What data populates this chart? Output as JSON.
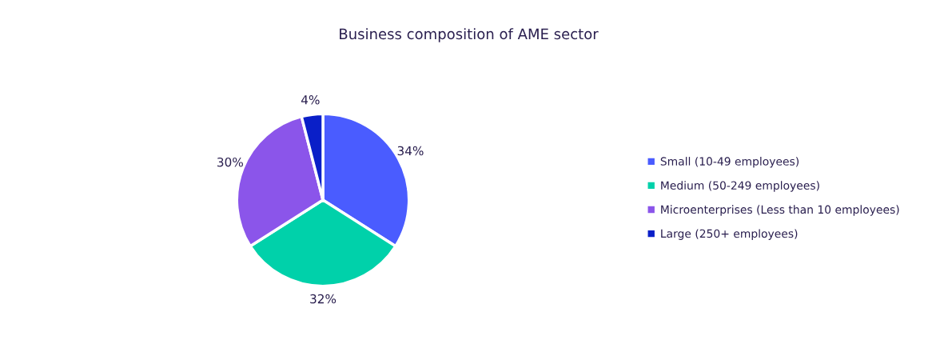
{
  "chart_data": {
    "type": "pie",
    "title": "Business composition of AME sector",
    "categories": [
      "Small (10-49 employees)",
      "Medium (50-249 employees)",
      "Microenterprises (Less than 10 employees)",
      "Large (250+ employees)"
    ],
    "values": [
      34,
      32,
      30,
      4
    ],
    "value_labels": [
      "34%",
      "32%",
      "30%",
      "4%"
    ],
    "colors": [
      "#4a5cff",
      "#00d1aa",
      "#8b55ea",
      "#0a1fc8"
    ],
    "legend": "right"
  }
}
